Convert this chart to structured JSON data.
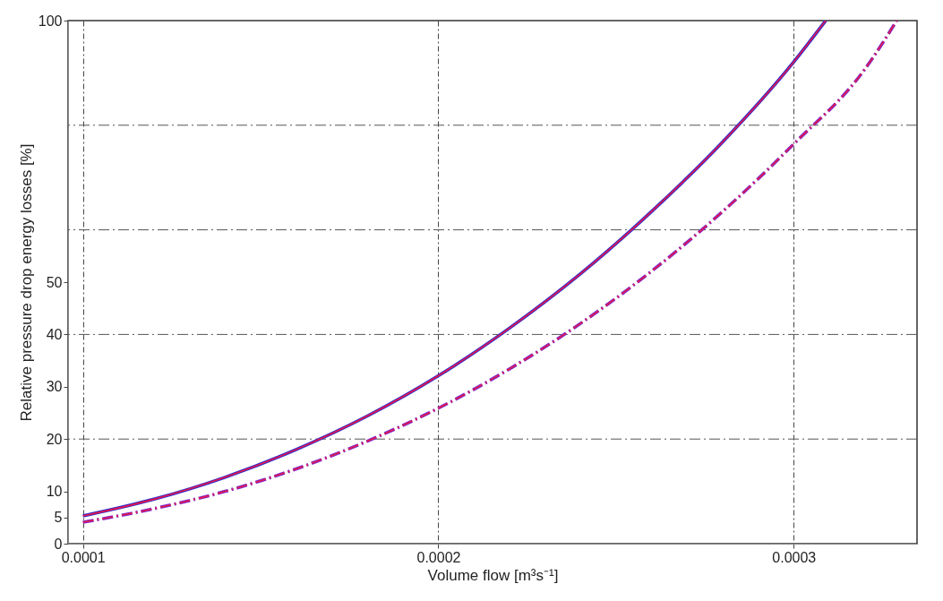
{
  "chart_data": {
    "type": "line",
    "xlabel": "Volume flow [m³s⁻¹]",
    "ylabel": "Relative pressure drop energy losses [%]",
    "x": [
      0.0001,
      0.00012,
      0.00014,
      0.00016,
      0.00018,
      0.0002,
      0.00022,
      0.00024,
      0.00026,
      0.00028,
      0.0003,
      0.000309
    ],
    "series": [
      {
        "color": "#2a2ad0",
        "line_style": "solid",
        "values": [
          5.3,
          8.5,
          12.7,
          18.0,
          24.4,
          32.1,
          41.2,
          51.6,
          63.5,
          76.8,
          92.1,
          100
        ]
      },
      {
        "color": "#e8174a",
        "line_style": "solid",
        "values": [
          5.3,
          8.5,
          12.7,
          18.0,
          24.4,
          32.1,
          41.2,
          51.6,
          63.5,
          76.8,
          92.1,
          100
        ]
      },
      {
        "color": "#7a2ad0",
        "line_style": "dashed",
        "x": [
          0.0001,
          0.00012,
          0.00014,
          0.00016,
          0.00018,
          0.0002,
          0.00022,
          0.00024,
          0.00026,
          0.00028,
          0.0003,
          0.00032,
          0.000329
        ],
        "values": [
          4.1,
          6.7,
          10.0,
          14.3,
          19.6,
          25.9,
          33.4,
          42.1,
          52.1,
          63.5,
          76.4,
          90.7,
          100
        ]
      },
      {
        "color": "#e8174a",
        "line_style": "dashed",
        "x": [
          0.0001,
          0.00012,
          0.00014,
          0.00016,
          0.00018,
          0.0002,
          0.00022,
          0.00024,
          0.00026,
          0.00028,
          0.0003,
          0.00032,
          0.000329
        ],
        "values": [
          4.1,
          6.7,
          10.0,
          14.3,
          19.6,
          25.9,
          33.4,
          42.1,
          52.1,
          63.5,
          76.4,
          90.7,
          100
        ]
      }
    ],
    "xlim": [
      9.58e-05,
      0.0003347
    ],
    "xticks": [
      0.0001,
      0.0002,
      0.0003
    ],
    "ylim": [
      0,
      100
    ],
    "yticks": [
      0,
      5,
      10,
      20,
      30,
      40,
      50,
      100
    ],
    "grid": "x",
    "ref_lines": [
      {
        "axis": "y",
        "value": 20,
        "color": "#555555",
        "line_style": "dashed"
      },
      {
        "axis": "y",
        "value": 40,
        "color": "#555555",
        "line_style": "dashed"
      },
      {
        "axis": "y",
        "value": 60,
        "color": "#555555",
        "line_style": "dashed"
      },
      {
        "axis": "y",
        "value": 80,
        "color": "#555555",
        "line_style": "dashed"
      }
    ]
  }
}
